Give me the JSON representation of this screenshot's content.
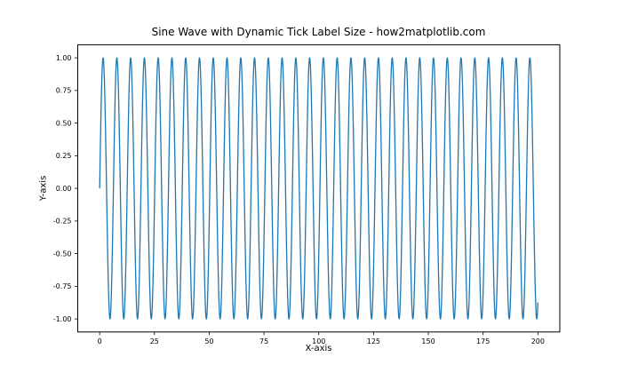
{
  "figure": {
    "title": "Sine Wave with Dynamic Tick Label Size - how2matplotlib.com",
    "xlabel": "X-axis",
    "ylabel": "Y-axis",
    "background_color": "#ffffff",
    "spine_color": "#000000",
    "tick_color": "#000000",
    "text_color": "#000000"
  },
  "chart_data": {
    "type": "line",
    "title": "Sine Wave with Dynamic Tick Label Size - how2matplotlib.com",
    "xlabel": "X-axis",
    "ylabel": "Y-axis",
    "series": [
      {
        "name": "sine-wave",
        "function": "y = sin(x)",
        "amplitude": 1,
        "angular_frequency": 1,
        "phase": 0,
        "x_min": 0,
        "x_max": 200,
        "num_points": 2000,
        "color": "#1f77b4",
        "line_width": 1.3
      }
    ],
    "xlim": [
      -10,
      210
    ],
    "ylim": [
      -1.1,
      1.1
    ],
    "x_ticks": [
      0,
      25,
      50,
      75,
      100,
      125,
      150,
      175,
      200
    ],
    "x_tick_labels": [
      "0",
      "25",
      "50",
      "75",
      "100",
      "125",
      "150",
      "175",
      "200"
    ],
    "y_ticks": [
      -1.0,
      -0.75,
      -0.5,
      -0.25,
      0.0,
      0.25,
      0.5,
      0.75,
      1.0
    ],
    "y_tick_labels": [
      "-1.00",
      "-0.75",
      "-0.50",
      "-0.25",
      "0.00",
      "0.25",
      "0.50",
      "0.75",
      "1.00"
    ],
    "grid": false,
    "legend": "none",
    "tick_label_font_size": 8
  }
}
